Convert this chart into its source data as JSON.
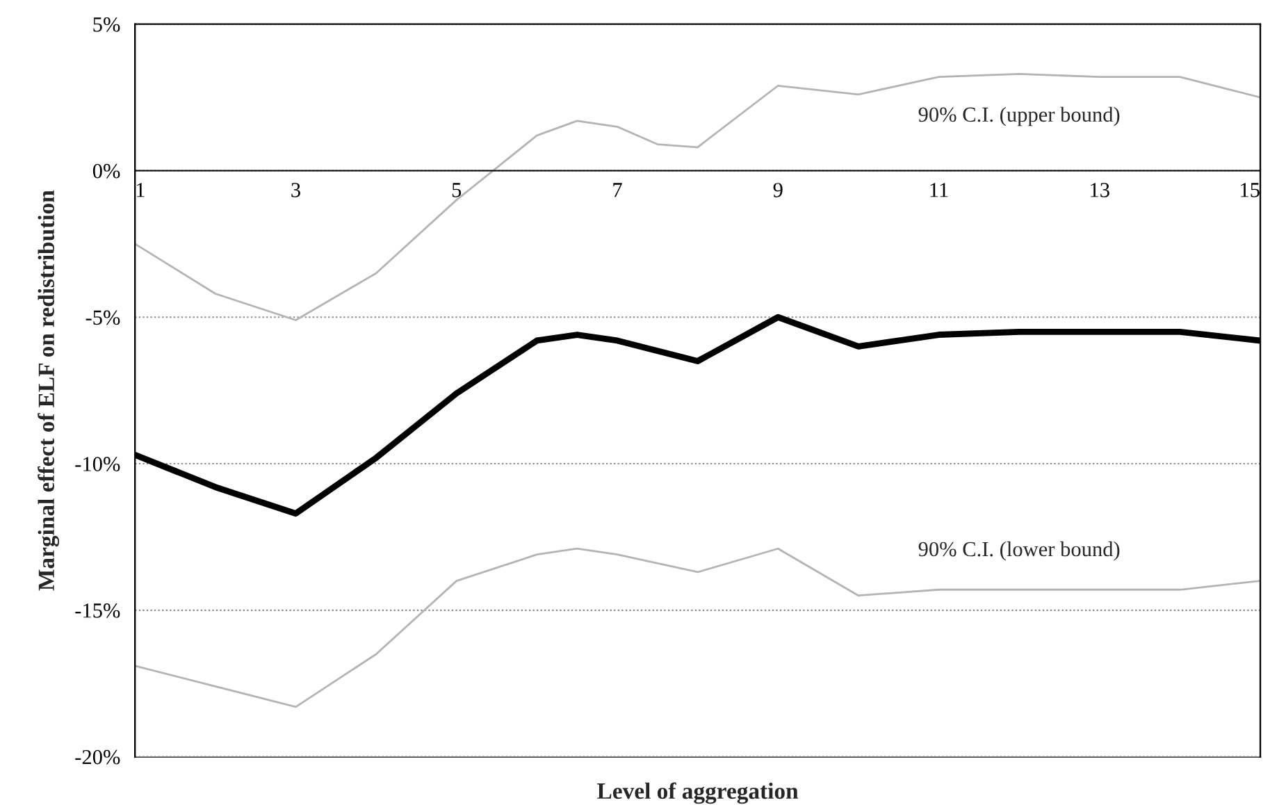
{
  "chart_data": {
    "type": "line",
    "xlabel": "Level of aggregation",
    "ylabel": "Marginal effect of ELF on redistribution",
    "xlim": [
      1,
      15
    ],
    "xticks": [
      1,
      3,
      5,
      7,
      9,
      11,
      13,
      15
    ],
    "ylim": [
      -20,
      5
    ],
    "yticks": [
      {
        "value": -20,
        "label": "-20%"
      },
      {
        "value": -15,
        "label": "-15%"
      },
      {
        "value": -10,
        "label": "-10%"
      },
      {
        "value": -5,
        "label": "-5%"
      },
      {
        "value": 0,
        "label": "0%"
      },
      {
        "value": 5,
        "label": "5%"
      }
    ],
    "grid": "y",
    "legend": false,
    "marker": "none",
    "line_style": "solid",
    "series": [
      {
        "name": "90% C.I. (upper bound)",
        "color": "#b4b4b4",
        "x": [
          1,
          2,
          3,
          4,
          5,
          6,
          6.5,
          7,
          7.5,
          8,
          9,
          10,
          11,
          12,
          13,
          14,
          15
        ],
        "values": [
          -2.5,
          -4.2,
          -5.1,
          -3.5,
          -1.0,
          1.2,
          1.7,
          1.5,
          0.9,
          0.8,
          2.9,
          2.6,
          3.2,
          3.3,
          3.2,
          3.2,
          2.5
        ]
      },
      {
        "color": "#000000",
        "x": [
          1,
          2,
          3,
          4,
          5,
          6,
          6.5,
          7,
          8,
          9,
          10,
          11,
          12,
          13,
          14,
          15
        ],
        "values": [
          -9.7,
          -10.8,
          -11.7,
          -9.8,
          -7.6,
          -5.8,
          -5.6,
          -5.8,
          -6.5,
          -5.0,
          -6.0,
          -5.6,
          -5.5,
          -5.5,
          -5.5,
          -5.8
        ]
      },
      {
        "name": "90% C.I. (lower bound)",
        "color": "#b4b4b4",
        "x": [
          1,
          2,
          3,
          4,
          5,
          6,
          6.5,
          7,
          8,
          9,
          10,
          11,
          12,
          13,
          14,
          15
        ],
        "values": [
          -16.9,
          -17.6,
          -18.3,
          -16.5,
          -14.0,
          -13.1,
          -12.9,
          -13.1,
          -13.7,
          -12.9,
          -14.5,
          -14.3,
          -14.3,
          -14.3,
          -14.3,
          -14.0
        ]
      }
    ]
  }
}
